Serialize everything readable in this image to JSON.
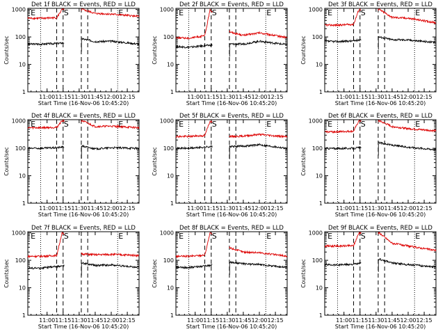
{
  "colors": {
    "events": "#000000",
    "lld": "#dd0000",
    "axis": "#000000"
  },
  "common": {
    "xlabel": "Start Time (16-Nov-06 10:45:20)",
    "ylabel": "Counts/sec",
    "x_ticks": [
      "11:00",
      "11:15",
      "11:30",
      "11:45",
      "12:00",
      "12:15"
    ],
    "x_tick_minutes": [
      15,
      30,
      45,
      60,
      75,
      90
    ],
    "x_range_minutes": [
      -3,
      101
    ],
    "y_ticks": [
      "1",
      "10",
      "100",
      "1000"
    ],
    "y_tick_values": [
      1,
      10,
      100,
      1000
    ],
    "ylim": [
      1,
      1100
    ],
    "yscale": "log",
    "markers": [
      {
        "label": "E",
        "minute": -1,
        "style": "dotted"
      },
      {
        "label": "S",
        "minute": 30,
        "style": "dashed"
      },
      {
        "label": "E",
        "minute": 81,
        "style": "dotted"
      }
    ],
    "gap_minutes": [
      31,
      47
    ],
    "dotted_lines_minutes": [
      9,
      81
    ],
    "dashed_lines_minutes": [
      24,
      30,
      47,
      53
    ],
    "legend": [
      "BLACK = Events",
      "RED = LLD"
    ]
  },
  "chart_data": [
    {
      "type": "line",
      "title": "Det 1f BLACK = Events, RED = LLD",
      "series": [
        {
          "name": "Events",
          "color": "#000000",
          "values": [
            [
              -3,
              55
            ],
            [
              9,
              55
            ],
            [
              24,
              58
            ],
            [
              29,
              60
            ],
            [
              48,
              85
            ],
            [
              60,
              68
            ],
            [
              75,
              70
            ],
            [
              101,
              55
            ]
          ]
        },
        {
          "name": "LLD",
          "color": "#dd0000",
          "values": [
            [
              -3,
              480
            ],
            [
              9,
              480
            ],
            [
              24,
              500
            ],
            [
              29,
              1000
            ],
            [
              48,
              1000
            ],
            [
              60,
              720
            ],
            [
              75,
              680
            ],
            [
              101,
              560
            ]
          ]
        }
      ]
    },
    {
      "type": "line",
      "title": "Det 2f BLACK = Events, RED = LLD",
      "series": [
        {
          "name": "Events",
          "color": "#000000",
          "values": [
            [
              -3,
              45
            ],
            [
              9,
              42
            ],
            [
              24,
              48
            ],
            [
              29,
              50
            ],
            [
              48,
              55
            ],
            [
              60,
              55
            ],
            [
              75,
              70
            ],
            [
              101,
              52
            ]
          ]
        },
        {
          "name": "LLD",
          "color": "#dd0000",
          "values": [
            [
              -3,
              95
            ],
            [
              9,
              90
            ],
            [
              24,
              110
            ],
            [
              29,
              1000
            ],
            [
              48,
              150
            ],
            [
              60,
              115
            ],
            [
              75,
              140
            ],
            [
              101,
              95
            ]
          ]
        }
      ]
    },
    {
      "type": "line",
      "title": "Det 3f BLACK = Events, RED = LLD",
      "series": [
        {
          "name": "Events",
          "color": "#000000",
          "values": [
            [
              -3,
              70
            ],
            [
              9,
              68
            ],
            [
              24,
              72
            ],
            [
              29,
              78
            ],
            [
              48,
              100
            ],
            [
              60,
              80
            ],
            [
              75,
              78
            ],
            [
              101,
              62
            ]
          ]
        },
        {
          "name": "LLD",
          "color": "#dd0000",
          "values": [
            [
              -3,
              270
            ],
            [
              9,
              270
            ],
            [
              24,
              290
            ],
            [
              29,
              1000
            ],
            [
              48,
              1000
            ],
            [
              60,
              520
            ],
            [
              75,
              480
            ],
            [
              101,
              330
            ]
          ]
        }
      ]
    },
    {
      "type": "line",
      "title": "Det 4f BLACK = Events, RED = LLD",
      "series": [
        {
          "name": "Events",
          "color": "#000000",
          "values": [
            [
              -3,
              100
            ],
            [
              9,
              100
            ],
            [
              24,
              105
            ],
            [
              29,
              110
            ],
            [
              48,
              120
            ],
            [
              60,
              95
            ],
            [
              75,
              105
            ],
            [
              101,
              100
            ]
          ]
        },
        {
          "name": "LLD",
          "color": "#dd0000",
          "values": [
            [
              -3,
              560
            ],
            [
              9,
              560
            ],
            [
              24,
              580
            ],
            [
              29,
              1000
            ],
            [
              48,
              1000
            ],
            [
              60,
              620
            ],
            [
              75,
              640
            ],
            [
              101,
              560
            ]
          ]
        }
      ]
    },
    {
      "type": "line",
      "title": "Det 5f BLACK = Events, RED = LLD",
      "series": [
        {
          "name": "Events",
          "color": "#000000",
          "values": [
            [
              -3,
              100
            ],
            [
              9,
              100
            ],
            [
              24,
              110
            ],
            [
              29,
              115
            ],
            [
              48,
              115
            ],
            [
              60,
              120
            ],
            [
              75,
              135
            ],
            [
              101,
              100
            ]
          ]
        },
        {
          "name": "LLD",
          "color": "#dd0000",
          "values": [
            [
              -3,
              270
            ],
            [
              9,
              270
            ],
            [
              24,
              290
            ],
            [
              29,
              1000
            ],
            [
              48,
              270
            ],
            [
              60,
              280
            ],
            [
              75,
              320
            ],
            [
              101,
              260
            ]
          ]
        }
      ]
    },
    {
      "type": "line",
      "title": "Det 6f BLACK = Events, RED = LLD",
      "series": [
        {
          "name": "Events",
          "color": "#000000",
          "values": [
            [
              -3,
              100
            ],
            [
              9,
              98
            ],
            [
              24,
              100
            ],
            [
              29,
              105
            ],
            [
              48,
              160
            ],
            [
              60,
              130
            ],
            [
              75,
              110
            ],
            [
              101,
              90
            ]
          ]
        },
        {
          "name": "LLD",
          "color": "#dd0000",
          "values": [
            [
              -3,
              400
            ],
            [
              9,
              400
            ],
            [
              24,
              420
            ],
            [
              29,
              1000
            ],
            [
              48,
              1000
            ],
            [
              60,
              620
            ],
            [
              75,
              520
            ],
            [
              101,
              430
            ]
          ]
        }
      ]
    },
    {
      "type": "line",
      "title": "Det 7f BLACK = Events, RED = LLD",
      "series": [
        {
          "name": "Events",
          "color": "#000000",
          "values": [
            [
              -3,
              52
            ],
            [
              9,
              52
            ],
            [
              24,
              60
            ],
            [
              29,
              62
            ],
            [
              48,
              80
            ],
            [
              60,
              65
            ],
            [
              75,
              68
            ],
            [
              101,
              55
            ]
          ]
        },
        {
          "name": "LLD",
          "color": "#dd0000",
          "values": [
            [
              -3,
              140
            ],
            [
              9,
              140
            ],
            [
              24,
              150
            ],
            [
              29,
              1000
            ],
            [
              48,
              170
            ],
            [
              60,
              160
            ],
            [
              75,
              165
            ],
            [
              101,
              150
            ]
          ]
        }
      ]
    },
    {
      "type": "line",
      "title": "Det 8f BLACK = Events, RED = LLD",
      "series": [
        {
          "name": "Events",
          "color": "#000000",
          "values": [
            [
              -3,
              55
            ],
            [
              9,
              55
            ],
            [
              24,
              62
            ],
            [
              29,
              65
            ],
            [
              48,
              85
            ],
            [
              60,
              75
            ],
            [
              75,
              70
            ],
            [
              101,
              55
            ]
          ]
        },
        {
          "name": "LLD",
          "color": "#dd0000",
          "values": [
            [
              -3,
              140
            ],
            [
              9,
              140
            ],
            [
              24,
              155
            ],
            [
              29,
              1000
            ],
            [
              48,
              280
            ],
            [
              60,
              200
            ],
            [
              75,
              190
            ],
            [
              101,
              140
            ]
          ]
        }
      ]
    },
    {
      "type": "line",
      "title": "Det 9f BLACK = Events, RED = LLD",
      "series": [
        {
          "name": "Events",
          "color": "#000000",
          "values": [
            [
              -3,
              70
            ],
            [
              9,
              68
            ],
            [
              24,
              72
            ],
            [
              29,
              75
            ],
            [
              48,
              110
            ],
            [
              60,
              80
            ],
            [
              75,
              70
            ],
            [
              101,
              58
            ]
          ]
        },
        {
          "name": "LLD",
          "color": "#dd0000",
          "values": [
            [
              -3,
              330
            ],
            [
              9,
              330
            ],
            [
              24,
              340
            ],
            [
              29,
              1000
            ],
            [
              48,
              1000
            ],
            [
              60,
              420
            ],
            [
              75,
              330
            ],
            [
              101,
              230
            ]
          ]
        }
      ]
    }
  ]
}
